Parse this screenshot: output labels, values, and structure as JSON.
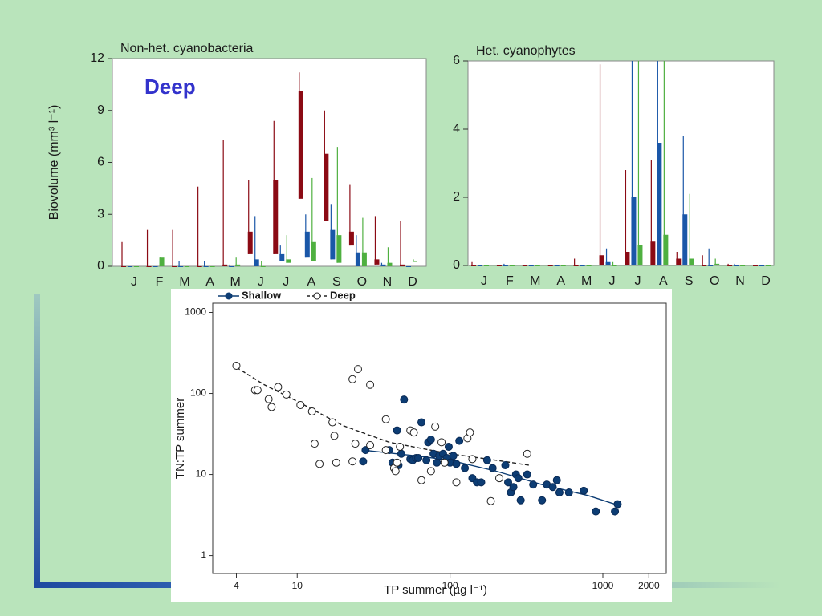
{
  "chart_data": [
    {
      "type": "box",
      "title": "Non-het. cyanobacteria",
      "y_label": "Biovolume (mm³ l⁻¹)",
      "annotation": "Deep",
      "categories": [
        "J",
        "F",
        "M",
        "A",
        "M",
        "J",
        "J",
        "A",
        "S",
        "O",
        "N",
        "D"
      ],
      "ylim": [
        0,
        12
      ],
      "yticks": [
        0,
        3,
        6,
        9,
        12
      ],
      "series": [
        {
          "color": "#8b0a14",
          "low": [
            0,
            0,
            0,
            0,
            0,
            0.7,
            0.7,
            3.9,
            2.6,
            1.2,
            0.1,
            0
          ],
          "high": [
            0,
            0,
            0,
            0,
            0.1,
            2.0,
            5.0,
            10.1,
            6.5,
            2.0,
            0.4,
            0.1
          ],
          "max": [
            1.4,
            2.1,
            2.1,
            4.6,
            7.3,
            5.0,
            8.4,
            11.2,
            9.0,
            4.7,
            2.9,
            2.6
          ]
        },
        {
          "color": "#1a57a8",
          "low": [
            0,
            0,
            0,
            0,
            0,
            0,
            0.3,
            0.5,
            0.4,
            0,
            0,
            0
          ],
          "high": [
            0,
            0,
            0,
            0,
            0,
            0.4,
            0.7,
            2.0,
            2.1,
            0.8,
            0.1,
            0
          ],
          "max": [
            0,
            0,
            0.3,
            0.3,
            0.1,
            2.9,
            1.2,
            3.0,
            3.6,
            1.8,
            0.2,
            0
          ]
        },
        {
          "color": "#4fb040",
          "low": [
            0,
            0,
            0,
            0,
            0,
            0,
            0.2,
            0.3,
            0.2,
            0,
            0,
            0.3
          ],
          "high": [
            0,
            0.5,
            0,
            0,
            0.1,
            0,
            0.4,
            1.4,
            1.8,
            0.8,
            0.2,
            0.3
          ],
          "max": [
            0,
            0.5,
            0,
            0,
            0.5,
            0.3,
            1.8,
            5.1,
            6.9,
            2.8,
            1.1,
            0.4
          ]
        }
      ]
    },
    {
      "type": "box",
      "title": "Het. cyanophytes",
      "categories": [
        "J",
        "F",
        "M",
        "A",
        "M",
        "J",
        "J",
        "A",
        "S",
        "O",
        "N",
        "D"
      ],
      "ylim": [
        0,
        6
      ],
      "yticks": [
        0,
        2,
        4,
        6
      ],
      "series": [
        {
          "color": "#8b0a14",
          "low": [
            0,
            0,
            0,
            0,
            0,
            0,
            0,
            0,
            0,
            0,
            0,
            0
          ],
          "high": [
            0,
            0,
            0,
            0,
            0,
            0.3,
            0.4,
            0.7,
            0.2,
            0,
            0,
            0
          ],
          "max": [
            0.1,
            0,
            0,
            0,
            0.2,
            5.9,
            2.8,
            3.1,
            0.4,
            0.3,
            0.05,
            0
          ]
        },
        {
          "color": "#1a57a8",
          "low": [
            0,
            0,
            0,
            0,
            0,
            0,
            0,
            0,
            0,
            0,
            0,
            0
          ],
          "high": [
            0,
            0,
            0,
            0,
            0,
            0.1,
            2.0,
            3.6,
            1.5,
            0,
            0,
            0
          ],
          "max": [
            0,
            0.05,
            0,
            0,
            0,
            0.5,
            6,
            6,
            3.8,
            0.5,
            0.05,
            0
          ]
        },
        {
          "color": "#4fb040",
          "low": [
            0,
            0,
            0,
            0,
            0,
            0,
            0,
            0,
            0,
            0,
            0,
            0
          ],
          "high": [
            0,
            0,
            0,
            0,
            0,
            0,
            0.6,
            0.9,
            0.2,
            0.05,
            0,
            0
          ],
          "max": [
            0,
            0,
            0,
            0,
            0,
            0.1,
            6,
            6,
            2.1,
            0.2,
            0,
            0
          ]
        }
      ]
    },
    {
      "type": "scatter",
      "x_label": "TP summer (µg l⁻¹)",
      "y_label": "TN:TP summer",
      "log_x": true,
      "log_y": true,
      "xlim": [
        2.8,
        2600
      ],
      "ylim": [
        0.6,
        1300
      ],
      "xticks": [
        4,
        10,
        100,
        1000,
        2000
      ],
      "yticks": [
        1,
        10,
        100,
        1000
      ],
      "legend": "top-left",
      "series": [
        {
          "name": "Shallow",
          "color": "#0d3d74",
          "marker": "filled",
          "line_style": "solid",
          "x": [
            27,
            28,
            40,
            42,
            45,
            46,
            48,
            50,
            55,
            57,
            60,
            62,
            65,
            70,
            72,
            75,
            78,
            82,
            85,
            90,
            95,
            98,
            100,
            105,
            110,
            115,
            125,
            140,
            150,
            160,
            175,
            190,
            230,
            240,
            250,
            260,
            270,
            280,
            290,
            320,
            350,
            400,
            430,
            470,
            500,
            520,
            600,
            750,
            900,
            1200,
            1250
          ],
          "values": [
            14.5,
            20,
            20,
            14,
            35,
            13,
            18,
            84,
            15.5,
            15,
            16,
            16,
            44,
            15,
            25,
            27,
            18,
            14,
            17,
            18,
            16,
            22,
            14,
            17,
            13.5,
            26,
            12,
            9,
            8,
            8,
            15,
            12,
            13,
            8,
            6,
            7,
            10,
            9,
            4.8,
            10,
            7.5,
            4.8,
            7.5,
            7,
            8.5,
            6,
            6,
            6.3,
            3.5,
            3.5,
            4.3
          ],
          "fit_x": [
            27,
            60,
            100,
            200,
            400,
            800,
            1200
          ],
          "fit_y": [
            20,
            17,
            15,
            11,
            7.5,
            5.5,
            4.3
          ]
        },
        {
          "name": "Deep",
          "color": "#222222",
          "marker": "open",
          "line_style": "dashed",
          "x": [
            4,
            5.3,
            5.5,
            6.5,
            6.8,
            7.5,
            8.5,
            10.5,
            12.5,
            13,
            14,
            17,
            17.5,
            18,
            23,
            23,
            24,
            25,
            30,
            30,
            38,
            38,
            43,
            44,
            45,
            47,
            55,
            58,
            65,
            75,
            80,
            88,
            92,
            110,
            130,
            135,
            140,
            185,
            210,
            320
          ],
          "values": [
            220,
            110,
            110,
            85,
            68,
            120,
            97,
            72,
            60,
            24,
            13.5,
            44,
            30,
            14,
            14.5,
            150,
            24,
            200,
            128,
            23,
            20,
            48,
            12,
            11,
            14,
            22,
            35,
            33,
            8.5,
            11,
            39,
            25,
            14,
            8,
            28,
            33,
            15.5,
            4.7,
            9,
            18
          ],
          "fit_x": [
            4,
            6,
            10,
            20,
            40,
            100,
            200,
            330
          ],
          "fit_y": [
            210,
            130,
            80,
            40,
            25,
            18,
            15,
            13
          ]
        }
      ]
    }
  ]
}
